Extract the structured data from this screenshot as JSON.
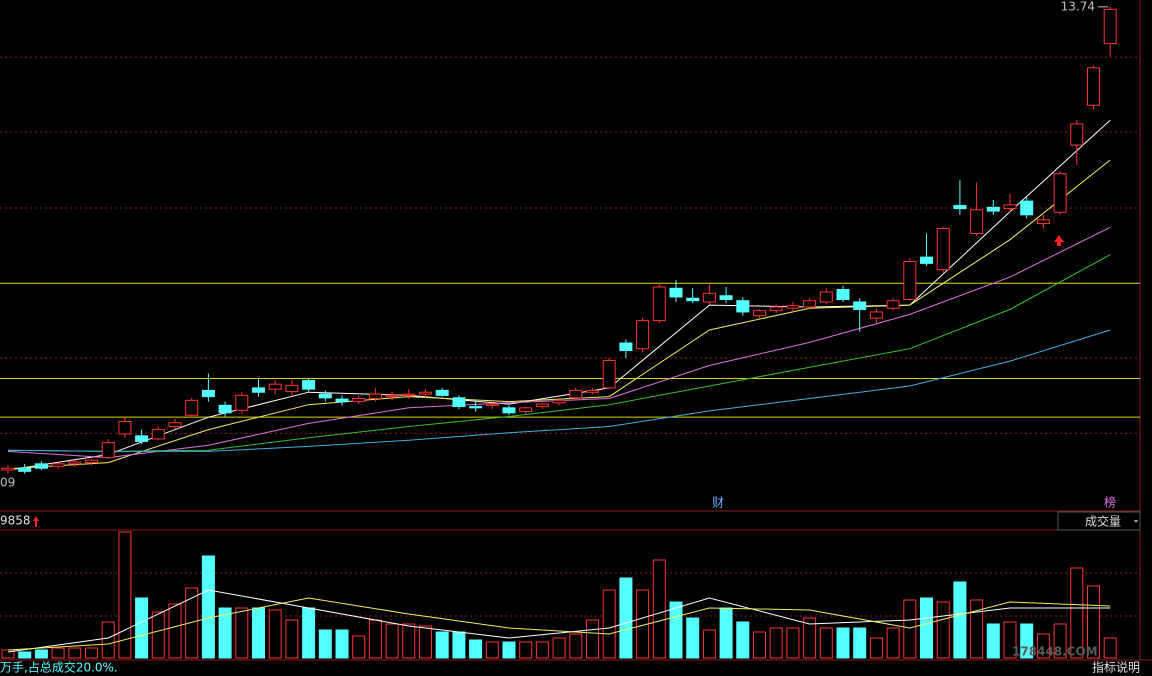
{
  "chart_data": [
    {
      "type": "candlestick",
      "open": [
        6.3,
        6.33,
        6.4,
        6.36,
        6.4,
        6.42,
        6.5,
        6.88,
        6.85,
        6.8,
        7.0,
        7.18,
        7.58,
        7.34,
        7.26,
        7.62,
        7.6,
        7.56,
        7.74,
        7.52,
        7.44,
        7.4,
        7.45,
        7.48,
        7.5,
        7.52,
        7.58,
        7.46,
        7.32,
        7.34,
        7.3,
        7.24,
        7.32,
        7.38,
        7.46,
        7.55,
        7.62,
        8.34,
        8.25,
        8.7,
        9.22,
        9.06,
        9.0,
        9.1,
        9.02,
        8.78,
        8.86,
        8.9,
        8.92,
        9.0,
        9.2,
        9.0,
        8.74,
        8.9,
        9.04,
        9.72,
        9.52,
        10.55,
        10.1,
        10.52,
        10.5,
        10.62,
        10.26,
        10.44,
        11.52,
        12.16,
        13.15
      ],
      "high": [
        6.38,
        6.4,
        6.44,
        6.42,
        6.46,
        6.48,
        6.8,
        7.15,
        6.95,
        7.0,
        7.12,
        7.46,
        7.85,
        7.4,
        7.55,
        7.78,
        7.74,
        7.75,
        7.78,
        7.58,
        7.5,
        7.5,
        7.62,
        7.56,
        7.6,
        7.6,
        7.62,
        7.5,
        7.4,
        7.38,
        7.34,
        7.32,
        7.38,
        7.46,
        7.62,
        7.62,
        8.1,
        8.4,
        8.74,
        9.3,
        9.35,
        9.22,
        9.28,
        9.24,
        9.08,
        8.88,
        8.96,
        9.0,
        9.06,
        9.22,
        9.26,
        9.06,
        8.9,
        9.06,
        9.7,
        10.1,
        10.2,
        10.96,
        10.92,
        10.64,
        10.74,
        10.7,
        10.4,
        11.1,
        11.92,
        12.8,
        13.74
      ],
      "low": [
        6.25,
        6.24,
        6.3,
        6.32,
        6.35,
        6.38,
        6.48,
        6.82,
        6.72,
        6.78,
        6.96,
        7.14,
        7.4,
        7.16,
        7.2,
        7.48,
        7.52,
        7.5,
        7.56,
        7.4,
        7.34,
        7.36,
        7.4,
        7.42,
        7.44,
        7.46,
        7.48,
        7.28,
        7.24,
        7.28,
        7.18,
        7.2,
        7.28,
        7.34,
        7.42,
        7.52,
        7.6,
        8.1,
        8.2,
        8.66,
        9.0,
        8.98,
        8.96,
        8.98,
        8.78,
        8.74,
        8.82,
        8.84,
        8.88,
        8.96,
        9.0,
        8.52,
        8.66,
        8.86,
        9.02,
        9.58,
        9.46,
        10.4,
        10.06,
        10.4,
        10.44,
        10.34,
        10.18,
        10.4,
        11.2,
        12.1,
        12.94
      ],
      "close": [
        6.33,
        6.28,
        6.33,
        6.4,
        6.43,
        6.46,
        6.74,
        7.08,
        6.76,
        6.95,
        7.06,
        7.42,
        7.48,
        7.22,
        7.5,
        7.55,
        7.68,
        7.66,
        7.6,
        7.46,
        7.4,
        7.45,
        7.52,
        7.5,
        7.52,
        7.55,
        7.5,
        7.32,
        7.3,
        7.36,
        7.22,
        7.3,
        7.36,
        7.42,
        7.58,
        7.58,
        8.06,
        8.22,
        8.7,
        9.24,
        9.08,
        9.02,
        9.14,
        9.04,
        8.84,
        8.86,
        8.92,
        8.94,
        9.02,
        9.16,
        9.04,
        8.88,
        8.84,
        9.02,
        9.65,
        9.62,
        10.18,
        10.5,
        10.48,
        10.46,
        10.56,
        10.4,
        10.32,
        11.06,
        11.86,
        12.76,
        13.7
      ],
      "up_color": "#ff3232",
      "down_color": "#54ffff",
      "ylim": [
        5.98,
        13.85
      ],
      "grid_levels": [
        12.93,
        11.73,
        10.51,
        9.3,
        8.1,
        6.89
      ],
      "grid_color": "#8b1a1a",
      "hlines": [
        9.3,
        7.77,
        7.15
      ],
      "hline_color": "#d8d800",
      "ma": [
        {
          "color": "#ffffff",
          "x": [
            0,
            6,
            12,
            18,
            24,
            30,
            36,
            42,
            48,
            54,
            60,
            66
          ],
          "values": [
            6.3,
            6.55,
            7.15,
            7.55,
            7.5,
            7.36,
            7.62,
            8.95,
            8.92,
            8.95,
            10.45,
            11.92
          ]
        },
        {
          "color": "#f0f060",
          "x": [
            0,
            6,
            12,
            18,
            24,
            30,
            36,
            42,
            48,
            54,
            60,
            66
          ],
          "values": [
            6.32,
            6.42,
            6.95,
            7.35,
            7.48,
            7.4,
            7.48,
            8.55,
            8.9,
            8.95,
            10.0,
            11.28
          ]
        },
        {
          "color": "#e070e0",
          "x": [
            0,
            6,
            12,
            18,
            24,
            30,
            36,
            42,
            48,
            54,
            60,
            66
          ],
          "values": [
            6.6,
            6.5,
            6.7,
            7.05,
            7.3,
            7.38,
            7.45,
            7.98,
            8.35,
            8.8,
            9.4,
            10.2
          ]
        },
        {
          "color": "#30c030",
          "x": [
            0,
            6,
            12,
            18,
            24,
            30,
            36,
            42,
            48,
            54,
            60,
            66
          ],
          "values": [
            6.62,
            6.6,
            6.62,
            6.82,
            7.0,
            7.16,
            7.35,
            7.65,
            7.95,
            8.25,
            8.88,
            9.76
          ]
        },
        {
          "color": "#40b0e0",
          "x": [
            0,
            6,
            12,
            18,
            24,
            30,
            36,
            42,
            48,
            54,
            60,
            66
          ],
          "values": [
            6.62,
            6.6,
            6.6,
            6.68,
            6.78,
            6.9,
            7.0,
            7.25,
            7.45,
            7.65,
            8.05,
            8.55
          ]
        }
      ],
      "max_label": 13.74,
      "low_label": "09",
      "annotations": [
        "财",
        "榜"
      ]
    },
    {
      "type": "bar",
      "values": [
        8,
        6,
        8,
        10,
        10,
        10,
        36,
        126,
        60,
        46,
        54,
        70,
        102,
        50,
        50,
        50,
        48,
        38,
        50,
        28,
        28,
        22,
        38,
        34,
        34,
        32,
        26,
        26,
        18,
        16,
        16,
        16,
        16,
        20,
        24,
        38,
        68,
        80,
        68,
        98,
        56,
        40,
        28,
        50,
        36,
        26,
        30,
        30,
        40,
        30,
        30,
        30,
        20,
        30,
        58,
        60,
        56,
        76,
        58,
        34,
        36,
        34,
        24,
        34,
        90,
        72,
        20
      ],
      "ylim": [
        0,
        130
      ],
      "grid_levels": [
        85,
        42
      ],
      "ma": [
        {
          "color": "#ffffff",
          "x": [
            0,
            6,
            12,
            18,
            24,
            30,
            36,
            42,
            48,
            54,
            60,
            66
          ],
          "values": [
            6,
            20,
            68,
            50,
            32,
            20,
            30,
            60,
            34,
            38,
            50,
            50
          ]
        },
        {
          "color": "#f0f060",
          "x": [
            0,
            6,
            12,
            18,
            24,
            30,
            36,
            42,
            48,
            54,
            60,
            66
          ],
          "values": [
            8,
            14,
            40,
            60,
            44,
            30,
            24,
            50,
            48,
            30,
            56,
            52
          ]
        }
      ],
      "header_value": "9858",
      "indicator": "成交量",
      "footer": "万手,占总成交20.0%.",
      "help": "指标说明"
    }
  ],
  "watermark": "178448.COM"
}
